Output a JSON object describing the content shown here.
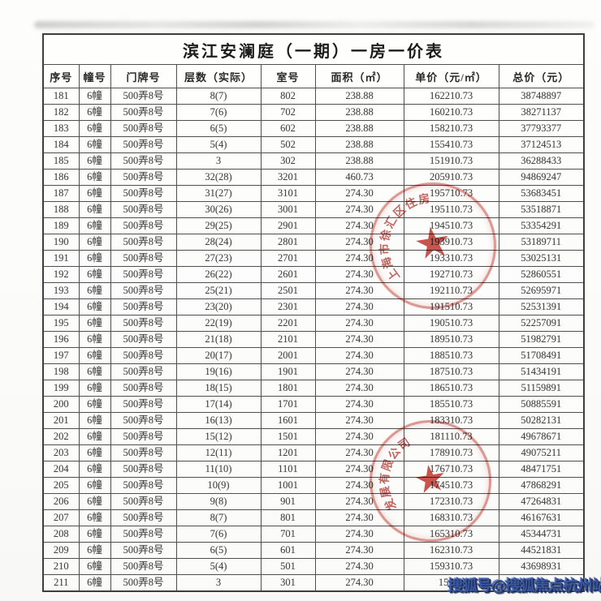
{
  "title": "滨江安澜庭（一期）一房一价表",
  "table": {
    "headers": [
      "序号",
      "幢号",
      "门牌号",
      "层数（实际）",
      "室号",
      "面积（㎡）",
      "单价（元/㎡）",
      "总价（元）"
    ],
    "rows": [
      [
        "181",
        "6幢",
        "500弄8号",
        "8(7)",
        "802",
        "238.88",
        "162210.73",
        "38748897"
      ],
      [
        "182",
        "6幢",
        "500弄8号",
        "7(6)",
        "702",
        "238.88",
        "160210.73",
        "38271137"
      ],
      [
        "183",
        "6幢",
        "500弄8号",
        "6(5)",
        "602",
        "238.88",
        "158210.73",
        "37793377"
      ],
      [
        "184",
        "6幢",
        "500弄8号",
        "5(4)",
        "502",
        "238.88",
        "155410.73",
        "37124513"
      ],
      [
        "185",
        "6幢",
        "500弄8号",
        "3",
        "302",
        "238.88",
        "151910.73",
        "36288433"
      ],
      [
        "186",
        "6幢",
        "500弄8号",
        "32(28)",
        "3201",
        "460.73",
        "205910.73",
        "94869247"
      ],
      [
        "187",
        "6幢",
        "500弄8号",
        "31(27)",
        "3101",
        "274.30",
        "195710.73",
        "53683451"
      ],
      [
        "188",
        "6幢",
        "500弄8号",
        "30(26)",
        "3001",
        "274.30",
        "195110.73",
        "53518871"
      ],
      [
        "189",
        "6幢",
        "500弄8号",
        "29(25)",
        "2901",
        "274.30",
        "194510.73",
        "53354291"
      ],
      [
        "190",
        "6幢",
        "500弄8号",
        "28(24)",
        "2801",
        "274.30",
        "193910.73",
        "53189711"
      ],
      [
        "191",
        "6幢",
        "500弄8号",
        "27(23)",
        "2701",
        "274.30",
        "193310.73",
        "53025131"
      ],
      [
        "192",
        "6幢",
        "500弄8号",
        "26(22)",
        "2601",
        "274.30",
        "192710.73",
        "52860551"
      ],
      [
        "193",
        "6幢",
        "500弄8号",
        "25(21)",
        "2501",
        "274.30",
        "192110.73",
        "52695971"
      ],
      [
        "194",
        "6幢",
        "500弄8号",
        "23(20)",
        "2301",
        "274.30",
        "191510.73",
        "52531391"
      ],
      [
        "195",
        "6幢",
        "500弄8号",
        "22(19)",
        "2201",
        "274.30",
        "190510.73",
        "52257091"
      ],
      [
        "196",
        "6幢",
        "500弄8号",
        "21(18)",
        "2101",
        "274.30",
        "189510.73",
        "51982791"
      ],
      [
        "197",
        "6幢",
        "500弄8号",
        "20(17)",
        "2001",
        "274.30",
        "188510.73",
        "51708491"
      ],
      [
        "198",
        "6幢",
        "500弄8号",
        "19(16)",
        "1901",
        "274.30",
        "187510.73",
        "51434191"
      ],
      [
        "199",
        "6幢",
        "500弄8号",
        "18(15)",
        "1801",
        "274.30",
        "186510.73",
        "51159891"
      ],
      [
        "200",
        "6幢",
        "500弄8号",
        "17(14)",
        "1701",
        "274.30",
        "185510.73",
        "50885591"
      ],
      [
        "201",
        "6幢",
        "500弄8号",
        "16(13)",
        "1601",
        "274.30",
        "183310.73",
        "50282131"
      ],
      [
        "202",
        "6幢",
        "500弄8号",
        "15(12)",
        "1501",
        "274.30",
        "181110.73",
        "49678671"
      ],
      [
        "203",
        "6幢",
        "500弄8号",
        "12(11)",
        "1201",
        "274.30",
        "178910.73",
        "49075211"
      ],
      [
        "204",
        "6幢",
        "500弄8号",
        "11(10)",
        "1101",
        "274.30",
        "176710.73",
        "48471751"
      ],
      [
        "205",
        "6幢",
        "500弄8号",
        "10(9)",
        "1001",
        "274.30",
        "174510.73",
        "47868291"
      ],
      [
        "206",
        "6幢",
        "500弄8号",
        "9(8)",
        "901",
        "274.30",
        "172310.73",
        "47264831"
      ],
      [
        "207",
        "6幢",
        "500弄8号",
        "8(7)",
        "801",
        "274.30",
        "168310.73",
        "46167631"
      ],
      [
        "208",
        "6幢",
        "500弄8号",
        "7(6)",
        "701",
        "274.30",
        "165310.73",
        "45344731"
      ],
      [
        "209",
        "6幢",
        "500弄8号",
        "6(5)",
        "601",
        "274.30",
        "162310.73",
        "44521831"
      ],
      [
        "210",
        "6幢",
        "500弄8号",
        "5(4)",
        "501",
        "274.30",
        "159310.73",
        "43698931"
      ],
      [
        "211",
        "6幢",
        "500弄8号",
        "3",
        "301",
        "274.30",
        "15551",
        ""
      ]
    ]
  },
  "stamps": [
    {
      "rim_text": "上海市徐汇区住房",
      "star": "★"
    },
    {
      "rim_text": "发展有限公司",
      "star": "★"
    }
  ],
  "watermark": "搜狐号@搜狐焦点杭州站",
  "colors": {
    "stamp_red": "#bd3428",
    "watermark_blue": "#3a57a0",
    "border_gray": "#4f4f4f"
  }
}
